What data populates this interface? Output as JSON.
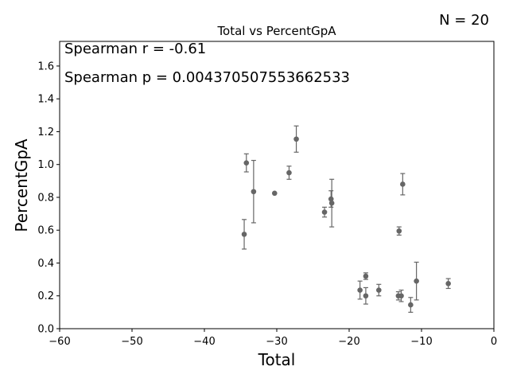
{
  "chart_data": {
    "type": "scatter",
    "title": "Total vs PercentGpA",
    "xlabel": "Total",
    "ylabel": "PercentGpA",
    "xlim": [
      -60,
      0
    ],
    "ylim": [
      0,
      1.75
    ],
    "xticks": [
      -60,
      -50,
      -40,
      -30,
      -20,
      -10,
      0
    ],
    "xtick_labels": [
      "−60",
      "−50",
      "−40",
      "−30",
      "−20",
      "−10",
      "0"
    ],
    "yticks": [
      0.0,
      0.2,
      0.4,
      0.6,
      0.8,
      1.0,
      1.2,
      1.4,
      1.6
    ],
    "ytick_labels": [
      "0.0",
      "0.2",
      "0.4",
      "0.6",
      "0.8",
      "1.0",
      "1.2",
      "1.4",
      "1.6"
    ],
    "grid": false,
    "marker_color": "#666666",
    "points": [
      {
        "x": -34.5,
        "y": 0.575,
        "err": 0.09
      },
      {
        "x": -34.2,
        "y": 1.01,
        "err": 0.055
      },
      {
        "x": -33.2,
        "y": 0.835,
        "err": 0.19
      },
      {
        "x": -30.3,
        "y": 0.825,
        "err": 0.0
      },
      {
        "x": -28.3,
        "y": 0.95,
        "err": 0.04
      },
      {
        "x": -27.3,
        "y": 1.155,
        "err": 0.08
      },
      {
        "x": -23.4,
        "y": 0.71,
        "err": 0.03
      },
      {
        "x": -22.5,
        "y": 0.79,
        "err": 0.05
      },
      {
        "x": -22.4,
        "y": 0.765,
        "err": 0.145
      },
      {
        "x": -18.5,
        "y": 0.235,
        "err": 0.055
      },
      {
        "x": -17.7,
        "y": 0.32,
        "err": 0.02
      },
      {
        "x": -17.7,
        "y": 0.2,
        "err": 0.05
      },
      {
        "x": -15.9,
        "y": 0.235,
        "err": 0.035
      },
      {
        "x": -13.2,
        "y": 0.2,
        "err": 0.025
      },
      {
        "x": -13.1,
        "y": 0.595,
        "err": 0.025
      },
      {
        "x": -12.8,
        "y": 0.2,
        "err": 0.035
      },
      {
        "x": -12.6,
        "y": 0.88,
        "err": 0.065
      },
      {
        "x": -11.5,
        "y": 0.145,
        "err": 0.045
      },
      {
        "x": -10.7,
        "y": 0.29,
        "err": 0.115
      },
      {
        "x": -6.3,
        "y": 0.275,
        "err": 0.03
      }
    ],
    "annotations": {
      "spearman_r": "Spearman r = -0.61",
      "spearman_p": "Spearman p = 0.004370507553662533",
      "n": "N = 20"
    }
  }
}
